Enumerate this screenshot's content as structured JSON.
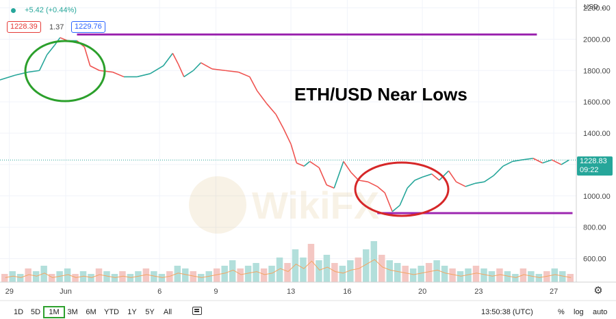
{
  "header": {
    "change_text": "+5.42 (+0.44%)",
    "bid": "1228.39",
    "spread": "1.37",
    "ask": "1229.76",
    "currency": "USD",
    "colors": {
      "bid": "#e53935",
      "ask": "#2962ff",
      "up": "#26a69a"
    }
  },
  "annotation": {
    "title": "ETH/USD Near Lows",
    "watermark": "WikiFX"
  },
  "price_tag": {
    "value": "1228.83",
    "countdown": "09:22",
    "color": "#26a69a"
  },
  "timeframes": [
    {
      "label": "1D",
      "active": false
    },
    {
      "label": "5D",
      "active": false
    },
    {
      "label": "1M",
      "active": true
    },
    {
      "label": "3M",
      "active": false
    },
    {
      "label": "6M",
      "active": false
    },
    {
      "label": "YTD",
      "active": false
    },
    {
      "label": "1Y",
      "active": false
    },
    {
      "label": "5Y",
      "active": false
    },
    {
      "label": "All",
      "active": false
    }
  ],
  "footer": {
    "time": "13:50:38 (UTC)",
    "percent": "%",
    "log": "log",
    "auto": "auto",
    "compare_icon": "compare-icon",
    "settings_icon": "gear-icon"
  },
  "chart_data": {
    "type": "line",
    "title": "ETH/USD Near Lows",
    "y_ticks": [
      600,
      800,
      1000,
      1200,
      1400,
      1600,
      1800,
      2000,
      2200
    ],
    "y_tick_labels": [
      "600.00",
      "800.00",
      "1000.00",
      "",
      "1400.00",
      "1600.00",
      "1800.00",
      "2000.00",
      "2200.00"
    ],
    "ylim": [
      450,
      2250
    ],
    "x_ticks": [
      {
        "label": "29",
        "day": 0
      },
      {
        "label": "Jun",
        "day": 3
      },
      {
        "label": "6",
        "day": 8
      },
      {
        "label": "9",
        "day": 11
      },
      {
        "label": "13",
        "day": 15
      },
      {
        "label": "16",
        "day": 18
      },
      {
        "label": "20",
        "day": 22
      },
      {
        "label": "23",
        "day": 25
      },
      {
        "label": "27",
        "day": 29
      }
    ],
    "xlim": [
      -0.5,
      30.2
    ],
    "series": [
      {
        "values": [
          [
            -0.5,
            1740
          ],
          [
            0.3,
            1770
          ],
          [
            1.0,
            1790
          ],
          [
            1.6,
            1800
          ],
          [
            2.0,
            1900
          ],
          [
            2.4,
            1960
          ],
          [
            2.7,
            2010
          ],
          [
            3.1,
            1990
          ],
          [
            3.6,
            1990
          ],
          [
            4.0,
            1950
          ],
          [
            4.3,
            1830
          ],
          [
            4.8,
            1800
          ],
          [
            5.5,
            1790
          ],
          [
            6.1,
            1760
          ],
          [
            6.8,
            1760
          ],
          [
            7.5,
            1780
          ],
          [
            8.2,
            1830
          ],
          [
            8.7,
            1910
          ],
          [
            9.0,
            1840
          ],
          [
            9.3,
            1760
          ],
          [
            9.8,
            1800
          ],
          [
            10.2,
            1850
          ],
          [
            10.8,
            1810
          ],
          [
            11.5,
            1800
          ],
          [
            12.2,
            1790
          ],
          [
            12.8,
            1760
          ],
          [
            13.2,
            1670
          ],
          [
            13.7,
            1590
          ],
          [
            14.2,
            1520
          ],
          [
            14.6,
            1430
          ],
          [
            15.0,
            1330
          ],
          [
            15.3,
            1210
          ],
          [
            15.7,
            1190
          ],
          [
            16.0,
            1220
          ],
          [
            16.5,
            1180
          ],
          [
            16.9,
            1070
          ],
          [
            17.3,
            1050
          ],
          [
            17.8,
            1220
          ],
          [
            18.2,
            1150
          ],
          [
            18.6,
            1100
          ],
          [
            19.1,
            1090
          ],
          [
            19.6,
            1060
          ],
          [
            20.0,
            1020
          ],
          [
            20.4,
            900
          ],
          [
            20.8,
            940
          ],
          [
            21.2,
            1050
          ],
          [
            21.6,
            1100
          ],
          [
            22.0,
            1120
          ],
          [
            22.5,
            1140
          ],
          [
            22.9,
            1100
          ],
          [
            23.4,
            1160
          ],
          [
            23.8,
            1090
          ],
          [
            24.3,
            1060
          ],
          [
            24.8,
            1080
          ],
          [
            25.3,
            1090
          ],
          [
            25.8,
            1130
          ],
          [
            26.3,
            1190
          ],
          [
            26.8,
            1220
          ],
          [
            27.3,
            1230
          ],
          [
            27.9,
            1240
          ],
          [
            28.4,
            1210
          ],
          [
            28.9,
            1230
          ],
          [
            29.4,
            1200
          ],
          [
            29.8,
            1228
          ]
        ],
        "color": "#26a69a"
      }
    ],
    "current_price": 1228.83,
    "resistance_level": 2030,
    "support_level": 890,
    "volume": [
      3,
      4,
      3,
      5,
      4,
      6,
      3,
      4,
      5,
      3,
      4,
      3,
      5,
      4,
      3,
      4,
      3,
      4,
      5,
      4,
      3,
      4,
      6,
      5,
      4,
      3,
      4,
      5,
      6,
      8,
      5,
      6,
      7,
      5,
      6,
      9,
      7,
      12,
      9,
      14,
      8,
      10,
      7,
      6,
      8,
      9,
      12,
      15,
      10,
      8,
      7,
      6,
      5,
      6,
      7,
      8,
      6,
      5,
      4,
      5,
      6,
      5,
      4,
      5,
      4,
      3,
      5,
      4,
      3,
      4,
      5,
      4,
      3
    ]
  }
}
